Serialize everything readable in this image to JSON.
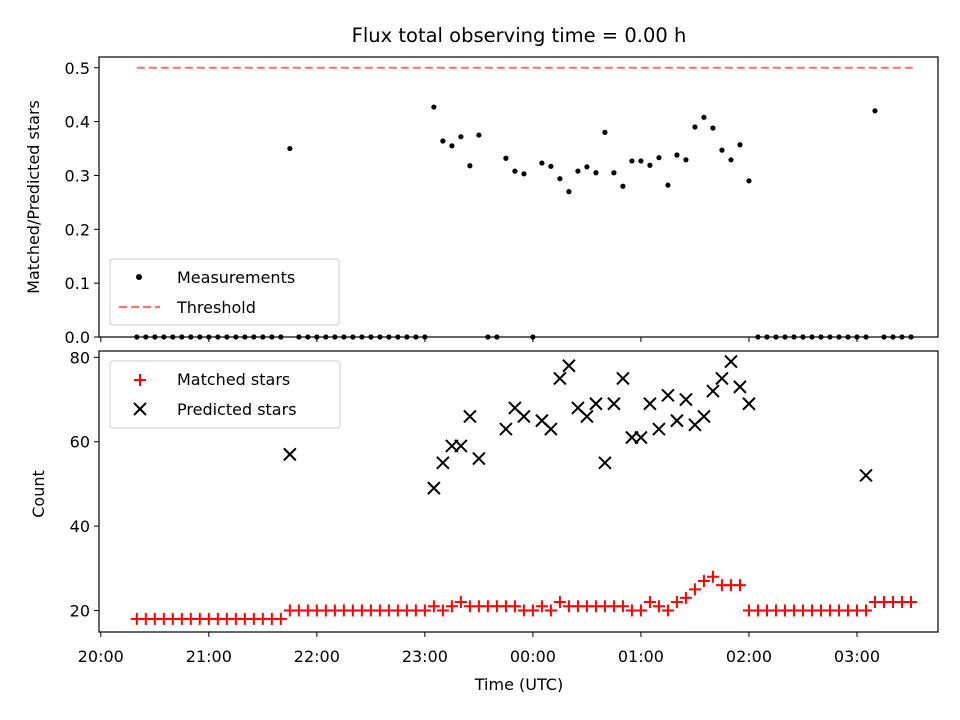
{
  "chart_data": [
    {
      "type": "scatter",
      "title": "Flux total observing time = 0.00 h",
      "xlabel": "",
      "ylabel": "Matched/Predicted stars",
      "xlim": [
        1199,
        1665
      ],
      "ylim": [
        0,
        0.52
      ],
      "yticks": [
        0.0,
        0.1,
        0.2,
        0.3,
        0.4,
        0.5
      ],
      "ytick_labels": [
        "0.0",
        "0.1",
        "0.2",
        "0.3",
        "0.4",
        "0.5"
      ],
      "legend": {
        "position": "lower left",
        "entries": [
          "Measurements",
          "Threshold"
        ]
      },
      "colors": {
        "measurements": "#000000",
        "threshold": "#ff7373"
      },
      "threshold": {
        "name": "Threshold",
        "y": 0.5,
        "x_range": [
          1220,
          1653
        ]
      },
      "series": [
        {
          "name": "Measurements",
          "x": [
            1220,
            1225,
            1230,
            1235,
            1240,
            1245,
            1250,
            1255,
            1260,
            1265,
            1270,
            1275,
            1280,
            1285,
            1290,
            1295,
            1300,
            1305,
            1310,
            1315,
            1320,
            1325,
            1330,
            1335,
            1340,
            1345,
            1350,
            1355,
            1360,
            1365,
            1370,
            1375,
            1380,
            1385,
            1390,
            1395,
            1400,
            1405,
            1410,
            1415,
            1420,
            1425,
            1430,
            1435,
            1440,
            1445,
            1450,
            1455,
            1460,
            1465,
            1470,
            1475,
            1480,
            1485,
            1490,
            1495,
            1500,
            1505,
            1510,
            1515,
            1520,
            1525,
            1530,
            1535,
            1540,
            1545,
            1550,
            1555,
            1560,
            1565,
            1570,
            1575,
            1580,
            1585,
            1590,
            1595,
            1600,
            1605,
            1610,
            1615,
            1620,
            1625,
            1630,
            1635,
            1640,
            1645,
            1650
          ],
          "y": [
            0,
            0,
            0,
            0,
            0,
            0,
            0,
            0,
            0,
            0,
            0,
            0,
            0,
            0,
            0,
            0,
            0,
            0.35,
            0,
            0,
            0,
            0,
            0,
            0,
            0,
            0,
            0,
            0,
            0,
            0,
            0,
            0,
            0,
            0.427,
            0.364,
            0.355,
            0.372,
            0.318,
            0.375,
            0,
            0,
            0.332,
            0.308,
            0.303,
            0,
            0.323,
            0.317,
            0.294,
            0.27,
            0.308,
            0.316,
            0.305,
            0.38,
            0.305,
            0.28,
            0.327,
            0.327,
            0.319,
            0.333,
            0.282,
            0.338,
            0.329,
            0.39,
            0.408,
            0.388,
            0.347,
            0.329,
            0.357,
            0.29,
            0,
            0,
            0,
            0,
            0,
            0,
            0,
            0,
            0,
            0,
            0,
            0,
            0,
            0.42,
            0,
            0,
            0,
            0
          ]
        }
      ]
    },
    {
      "type": "scatter",
      "title": "",
      "xlabel": "Time (UTC)",
      "ylabel": "Count",
      "xlim": [
        1199,
        1665
      ],
      "ylim": [
        14.9,
        81.5
      ],
      "yticks": [
        20,
        40,
        60,
        80
      ],
      "ytick_labels": [
        "20",
        "40",
        "60",
        "80"
      ],
      "xticks": [
        1200,
        1260,
        1320,
        1380,
        1440,
        1500,
        1560,
        1620
      ],
      "xtick_labels": [
        "20:00",
        "21:00",
        "22:00",
        "23:00",
        "00:00",
        "01:00",
        "02:00",
        "03:00"
      ],
      "legend": {
        "position": "upper left",
        "entries": [
          "Matched stars",
          "Predicted stars"
        ]
      },
      "colors": {
        "matched": "#ff0000",
        "predicted": "#000000"
      },
      "series": [
        {
          "name": "Matched stars",
          "x": [
            1220,
            1225,
            1230,
            1235,
            1240,
            1245,
            1250,
            1255,
            1260,
            1265,
            1270,
            1275,
            1280,
            1285,
            1290,
            1295,
            1300,
            1305,
            1310,
            1315,
            1320,
            1325,
            1330,
            1335,
            1340,
            1345,
            1350,
            1355,
            1360,
            1365,
            1370,
            1375,
            1380,
            1385,
            1390,
            1395,
            1400,
            1405,
            1410,
            1415,
            1420,
            1425,
            1430,
            1435,
            1440,
            1445,
            1450,
            1455,
            1460,
            1465,
            1470,
            1475,
            1480,
            1485,
            1490,
            1495,
            1500,
            1505,
            1510,
            1515,
            1520,
            1525,
            1530,
            1535,
            1540,
            1545,
            1550,
            1555,
            1560,
            1565,
            1570,
            1575,
            1580,
            1585,
            1590,
            1595,
            1600,
            1605,
            1610,
            1615,
            1620,
            1625,
            1630,
            1635,
            1640,
            1645,
            1650
          ],
          "y": [
            18,
            18,
            18,
            18,
            18,
            18,
            18,
            18,
            18,
            18,
            18,
            18,
            18,
            18,
            18,
            18,
            18,
            20,
            20,
            20,
            20,
            20,
            20,
            20,
            20,
            20,
            20,
            20,
            20,
            20,
            20,
            20,
            20,
            21,
            20,
            21,
            22,
            21,
            21,
            21,
            21,
            21,
            21,
            20,
            20,
            21,
            20,
            22,
            21,
            21,
            21,
            21,
            21,
            21,
            21,
            20,
            20,
            22,
            21,
            20,
            22,
            23,
            25,
            27,
            28,
            26,
            26,
            26,
            20,
            20,
            20,
            20,
            20,
            20,
            20,
            20,
            20,
            20,
            20,
            20,
            20,
            20,
            22,
            22,
            22,
            22,
            22
          ]
        },
        {
          "name": "Predicted stars",
          "x": [
            1305,
            1385,
            1390,
            1395,
            1400,
            1405,
            1410,
            1425,
            1430,
            1435,
            1445,
            1450,
            1455,
            1460,
            1465,
            1470,
            1475,
            1480,
            1485,
            1490,
            1495,
            1500,
            1505,
            1510,
            1515,
            1520,
            1525,
            1530,
            1535,
            1540,
            1545,
            1550,
            1555,
            1560,
            1625
          ],
          "y": [
            57,
            49,
            55,
            59,
            59,
            66,
            56,
            63,
            68,
            66,
            65,
            63,
            75,
            78,
            68,
            66,
            69,
            55,
            69,
            75,
            61,
            61,
            69,
            63,
            71,
            65,
            70,
            64,
            66,
            72,
            75,
            79,
            73,
            69,
            52
          ]
        }
      ]
    }
  ]
}
